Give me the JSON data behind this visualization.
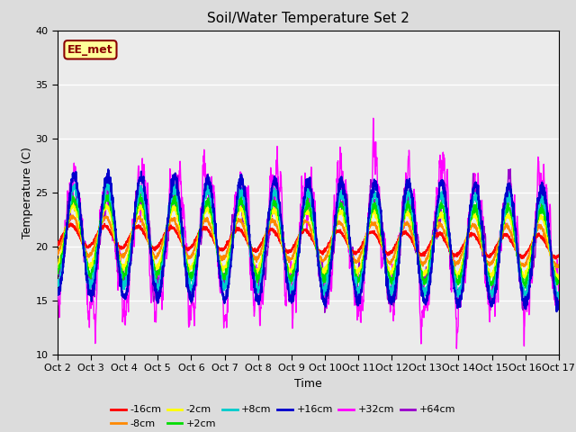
{
  "title": "Soil/Water Temperature Set 2",
  "xlabel": "Time",
  "ylabel": "Temperature (C)",
  "xlim": [
    0,
    15
  ],
  "ylim": [
    10,
    40
  ],
  "yticks": [
    10,
    15,
    20,
    25,
    30,
    35,
    40
  ],
  "xtick_labels": [
    "Oct 2",
    "Oct 3",
    "Oct 4",
    "Oct 5",
    "Oct 6",
    "Oct 7",
    "Oct 8",
    "Oct 9",
    "Oct 10",
    "Oct 11",
    "Oct 12",
    "Oct 13",
    "Oct 14",
    "Oct 15",
    "Oct 16",
    "Oct 17"
  ],
  "bg_color": "#dcdcdc",
  "plot_bg_color": "#ebebeb",
  "grid_color": "#ffffff",
  "annotation_text": "EE_met",
  "annotation_bg": "#ffff99",
  "annotation_border": "#8b0000",
  "series": [
    {
      "label": "-16cm",
      "color": "#ff0000",
      "lw": 1.5,
      "zorder": 5
    },
    {
      "label": "-8cm",
      "color": "#ff8800",
      "lw": 1.5,
      "zorder": 5
    },
    {
      "label": "-2cm",
      "color": "#ffff00",
      "lw": 1.5,
      "zorder": 5
    },
    {
      "label": "+2cm",
      "color": "#00dd00",
      "lw": 1.5,
      "zorder": 5
    },
    {
      "label": "+8cm",
      "color": "#00cccc",
      "lw": 1.5,
      "zorder": 5
    },
    {
      "label": "+16cm",
      "color": "#0000cc",
      "lw": 1.5,
      "zorder": 5
    },
    {
      "label": "+32cm",
      "color": "#ff00ff",
      "lw": 1.0,
      "zorder": 3
    },
    {
      "label": "+64cm",
      "color": "#9900cc",
      "lw": 1.0,
      "zorder": 4
    }
  ]
}
